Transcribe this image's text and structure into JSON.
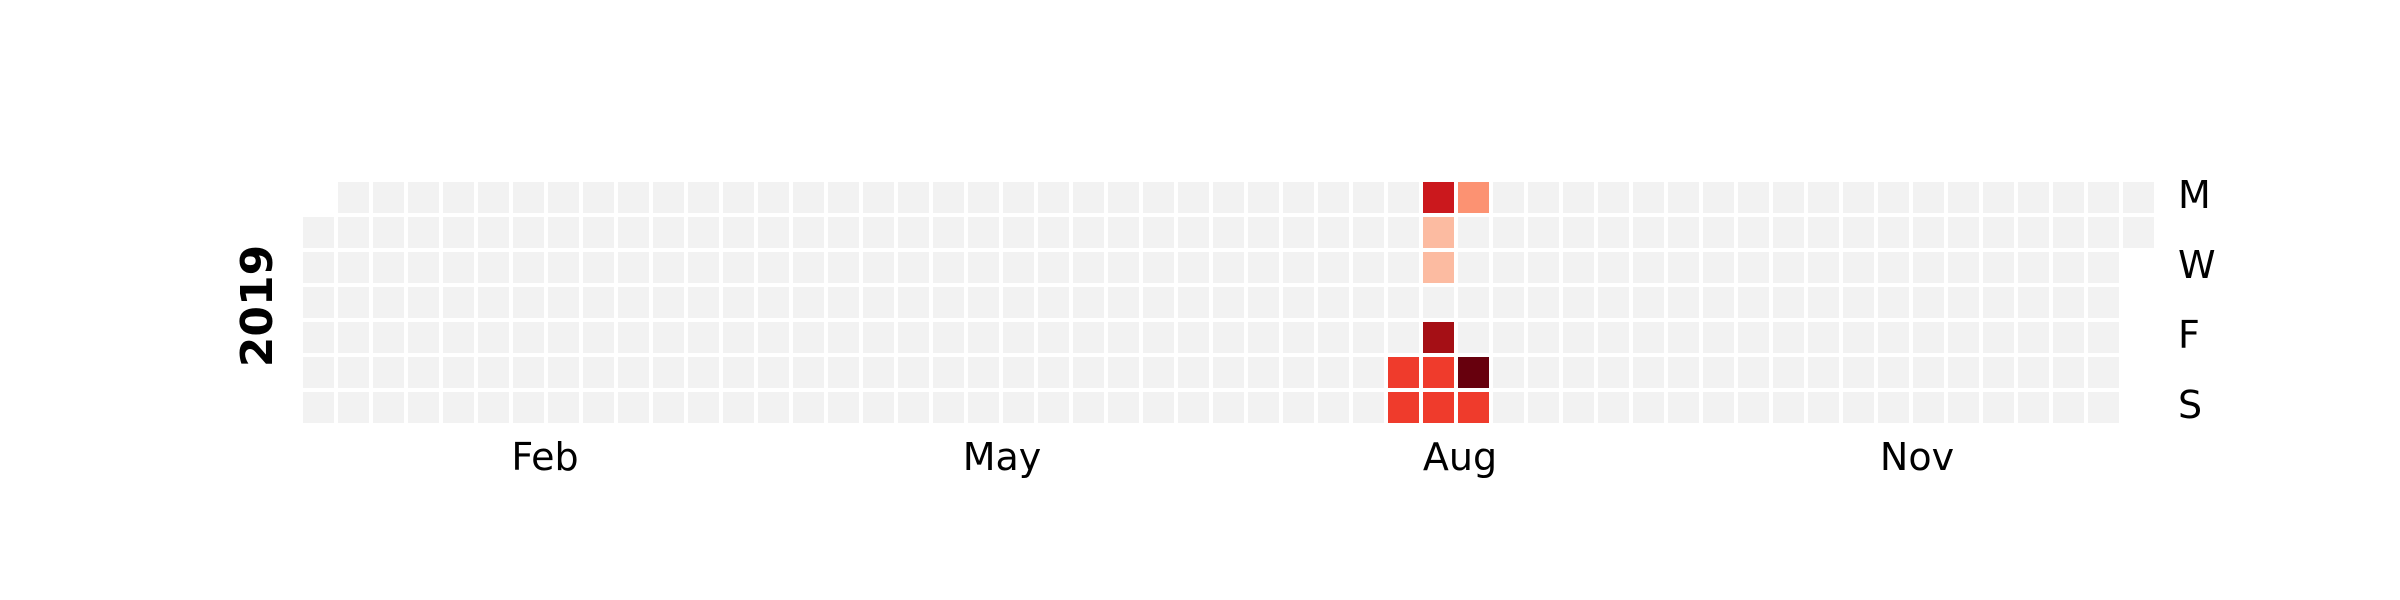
{
  "chart_data": {
    "type": "heatmap",
    "year": "2019",
    "months": [
      "Feb",
      "May",
      "Aug",
      "Nov"
    ],
    "weekdays": [
      "M",
      "W",
      "F",
      "S"
    ],
    "colors": {
      "empty": "#f2f2f2",
      "scale": [
        "#fff5f0",
        "#fcbba1",
        "#fc9272",
        "#fb6a4a",
        "#ef3b2c",
        "#cb181d",
        "#a50f15",
        "#67000d"
      ]
    },
    "values": [
      {
        "date": "2019-08-10",
        "value": 5
      },
      {
        "date": "2019-08-11",
        "value": 5
      },
      {
        "date": "2019-08-12",
        "value": 6
      },
      {
        "date": "2019-08-13",
        "value": 1
      },
      {
        "date": "2019-08-14",
        "value": 1
      },
      {
        "date": "2019-08-16",
        "value": 8
      },
      {
        "date": "2019-08-17",
        "value": 5
      },
      {
        "date": "2019-08-18",
        "value": 5
      },
      {
        "date": "2019-08-19",
        "value": 2
      },
      {
        "date": "2019-08-24",
        "value": 9
      },
      {
        "date": "2019-08-25",
        "value": 5
      }
    ],
    "vmax": 9
  }
}
